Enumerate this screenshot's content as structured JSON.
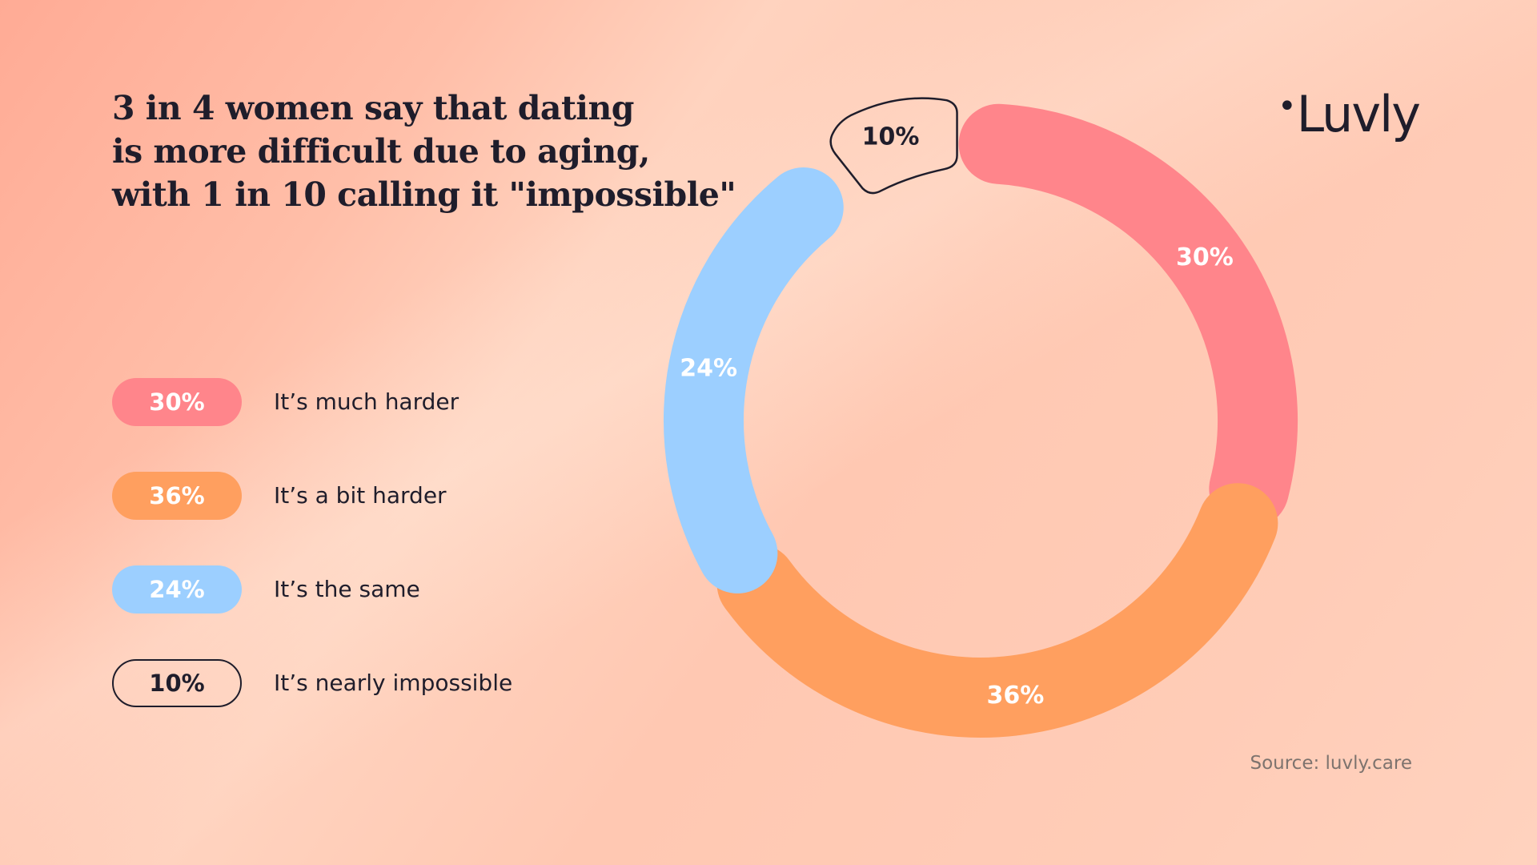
{
  "brand": {
    "logo_text": "Luvly",
    "logo_dot": "•"
  },
  "title_lines": [
    "3 in 4 women say that dating",
    "is more difficult due to aging,",
    "with 1 in 10 calling it \"impossible\""
  ],
  "source": "Source: luvly.care",
  "chart_data": {
    "type": "pie",
    "variant": "donut",
    "title": "3 in 4 women say that dating is more difficult due to aging, with 1 in 10 calling it \"impossible\"",
    "slices": [
      {
        "label": "It’s much harder",
        "value": 30,
        "display": "30%",
        "color": "#ff858b",
        "style": "filled"
      },
      {
        "label": "It’s a bit harder",
        "value": 36,
        "display": "36%",
        "color": "#ff9f5f",
        "style": "filled"
      },
      {
        "label": "It’s the same",
        "value": 24,
        "display": "24%",
        "color": "#9ccfff",
        "style": "filled"
      },
      {
        "label": "It’s nearly impossible",
        "value": 10,
        "display": "10%",
        "color": "#1f1d2b",
        "style": "outlined"
      }
    ],
    "legend": "left"
  }
}
